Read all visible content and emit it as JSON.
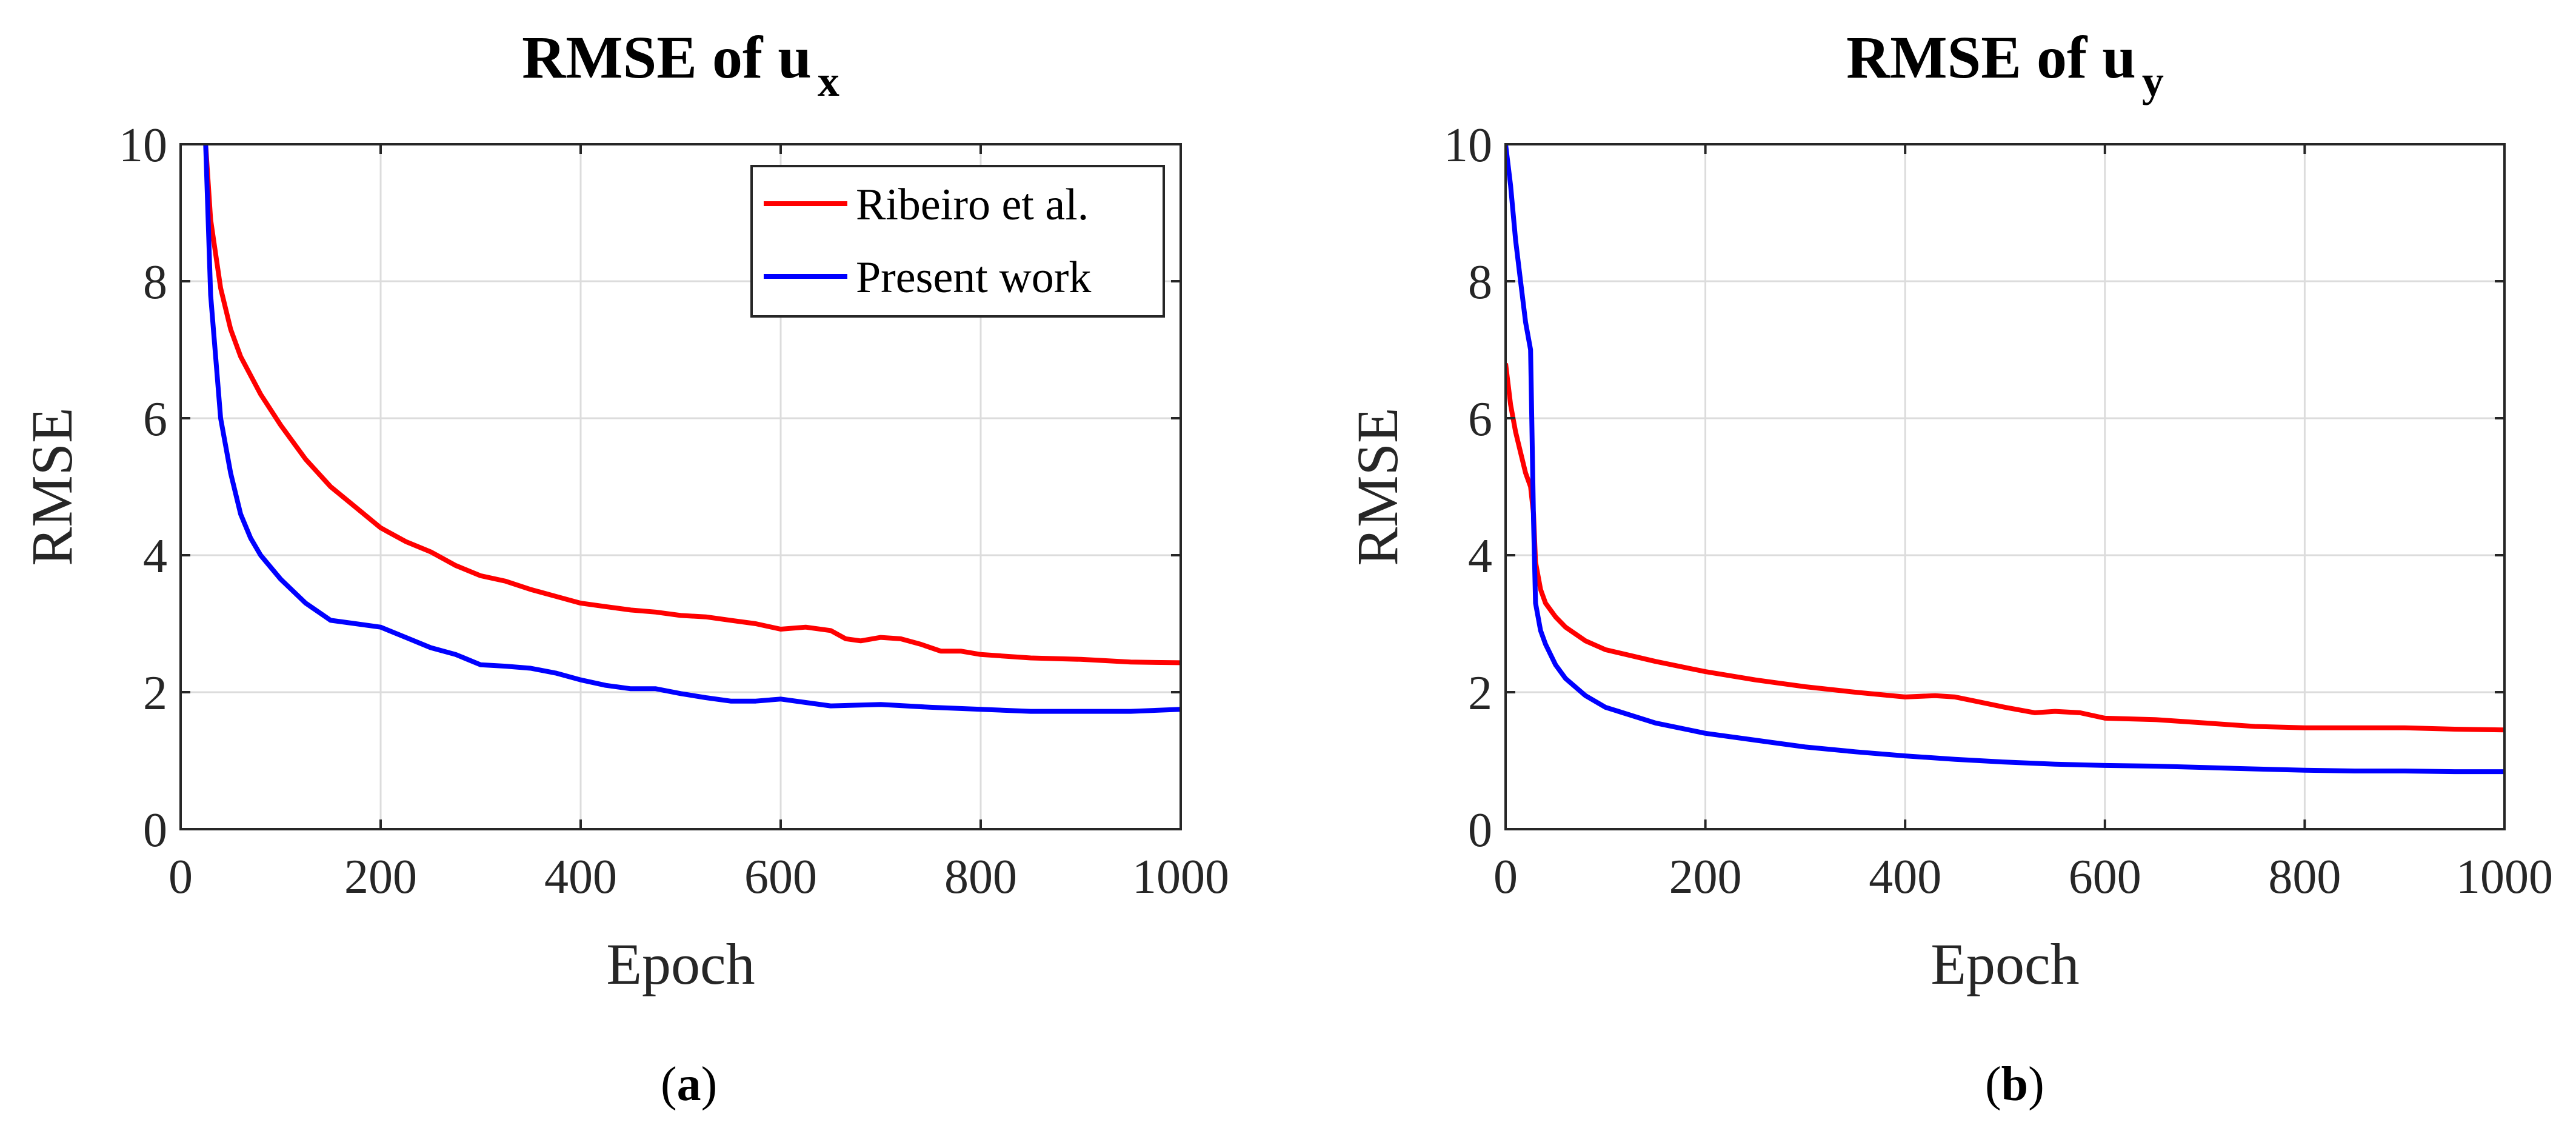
{
  "chart_data": [
    {
      "type": "line",
      "id": "a",
      "title": "RMSE of u",
      "title_subscript": "x",
      "xlabel": "Epoch",
      "ylabel": "RMSE",
      "xlim": [
        0,
        1000
      ],
      "ylim": [
        0,
        10
      ],
      "xticks": [
        "0",
        "200",
        "400",
        "600",
        "800",
        "1000"
      ],
      "yticks": [
        "0",
        "2",
        "4",
        "6",
        "8",
        "10"
      ],
      "grid": true,
      "caption_open": "(",
      "caption_letter": "a",
      "caption_close": ")",
      "legend": {
        "placement": "top-right",
        "entries": [
          {
            "label": "Ribeiro et al.",
            "color": "#ff0000"
          },
          {
            "label": "Present work",
            "color": "#0000ff"
          }
        ]
      },
      "series": [
        {
          "name": "Ribeiro et al.",
          "color": "#ff0000",
          "x": [
            25,
            30,
            40,
            50,
            60,
            80,
            100,
            125,
            150,
            175,
            200,
            225,
            250,
            275,
            300,
            325,
            350,
            375,
            400,
            425,
            450,
            475,
            500,
            525,
            550,
            575,
            600,
            625,
            650,
            665,
            680,
            700,
            720,
            740,
            760,
            780,
            800,
            850,
            900,
            950,
            1000
          ],
          "values": [
            10,
            8.9,
            7.9,
            7.3,
            6.9,
            6.35,
            5.9,
            5.4,
            5.0,
            4.7,
            4.4,
            4.2,
            4.05,
            3.85,
            3.7,
            3.62,
            3.5,
            3.4,
            3.3,
            3.25,
            3.2,
            3.17,
            3.12,
            3.1,
            3.05,
            3.0,
            2.92,
            2.95,
            2.9,
            2.78,
            2.75,
            2.8,
            2.78,
            2.7,
            2.6,
            2.6,
            2.55,
            2.5,
            2.48,
            2.44,
            2.43
          ]
        },
        {
          "name": "Present work",
          "color": "#0000ff",
          "x": [
            25,
            30,
            40,
            50,
            60,
            70,
            80,
            100,
            125,
            150,
            175,
            200,
            225,
            250,
            275,
            300,
            325,
            350,
            375,
            400,
            425,
            450,
            475,
            500,
            525,
            550,
            575,
            600,
            625,
            650,
            700,
            750,
            800,
            850,
            900,
            950,
            1000
          ],
          "values": [
            10,
            7.8,
            6.0,
            5.2,
            4.6,
            4.25,
            4.0,
            3.65,
            3.3,
            3.05,
            3.0,
            2.95,
            2.8,
            2.65,
            2.55,
            2.4,
            2.38,
            2.35,
            2.28,
            2.18,
            2.1,
            2.05,
            2.05,
            1.98,
            1.92,
            1.87,
            1.87,
            1.9,
            1.85,
            1.8,
            1.82,
            1.78,
            1.75,
            1.72,
            1.72,
            1.72,
            1.75
          ]
        }
      ]
    },
    {
      "type": "line",
      "id": "b",
      "title": "RMSE of u",
      "title_subscript": "y",
      "xlabel": "Epoch",
      "ylabel": "RMSE",
      "xlim": [
        0,
        1000
      ],
      "ylim": [
        0,
        10
      ],
      "xticks": [
        "0",
        "200",
        "400",
        "600",
        "800",
        "1000"
      ],
      "yticks": [
        "0",
        "2",
        "4",
        "6",
        "8",
        "10"
      ],
      "grid": true,
      "caption_open": "(",
      "caption_letter": "b",
      "caption_close": ")",
      "series": [
        {
          "name": "Ribeiro et al.",
          "color": "#ff0000",
          "x": [
            0,
            5,
            10,
            15,
            20,
            25,
            28,
            30,
            35,
            40,
            50,
            60,
            80,
            100,
            150,
            200,
            250,
            300,
            350,
            400,
            430,
            450,
            470,
            500,
            530,
            550,
            575,
            600,
            650,
            700,
            750,
            800,
            850,
            900,
            950,
            1000
          ],
          "values": [
            6.8,
            6.2,
            5.8,
            5.5,
            5.2,
            5.0,
            4.6,
            3.9,
            3.5,
            3.3,
            3.1,
            2.95,
            2.75,
            2.62,
            2.45,
            2.3,
            2.18,
            2.08,
            2.0,
            1.93,
            1.95,
            1.93,
            1.87,
            1.78,
            1.7,
            1.72,
            1.7,
            1.62,
            1.6,
            1.55,
            1.5,
            1.48,
            1.48,
            1.48,
            1.46,
            1.45
          ]
        },
        {
          "name": "Present work",
          "color": "#0000ff",
          "x": [
            0,
            5,
            10,
            15,
            20,
            25,
            28,
            30,
            35,
            40,
            50,
            60,
            80,
            100,
            150,
            200,
            250,
            300,
            350,
            400,
            450,
            500,
            550,
            600,
            650,
            700,
            750,
            800,
            850,
            900,
            950,
            1000
          ],
          "values": [
            10,
            9.4,
            8.6,
            8.0,
            7.4,
            7.0,
            4.5,
            3.3,
            2.9,
            2.7,
            2.4,
            2.2,
            1.95,
            1.78,
            1.55,
            1.4,
            1.3,
            1.2,
            1.13,
            1.07,
            1.02,
            0.98,
            0.95,
            0.93,
            0.92,
            0.9,
            0.88,
            0.86,
            0.85,
            0.85,
            0.84,
            0.84
          ]
        }
      ]
    }
  ]
}
